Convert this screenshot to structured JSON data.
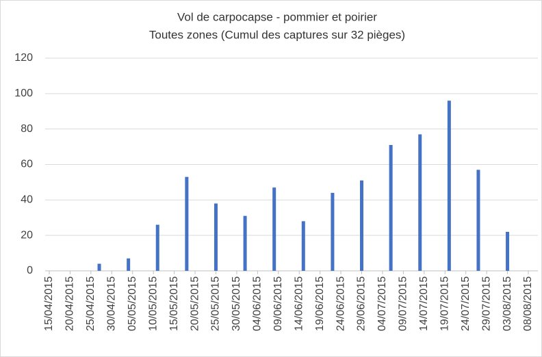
{
  "chart_data": {
    "type": "bar",
    "title": "Vol de carpocapse - pommier et poirier",
    "subtitle": "Toutes zones (Cumul des captures sur 32 pièges)",
    "x": [
      "27/04/2015",
      "04/05/2015",
      "11/05/2015",
      "18/05/2015",
      "25/05/2015",
      "01/06/2015",
      "08/06/2015",
      "15/06/2015",
      "22/06/2015",
      "29/06/2015",
      "06/07/2015",
      "13/07/2015",
      "20/07/2015",
      "27/07/2015",
      "03/08/2015"
    ],
    "values": [
      4,
      7,
      26,
      53,
      38,
      31,
      47,
      28,
      44,
      51,
      71,
      77,
      96,
      57,
      22
    ],
    "color": "#4472c4",
    "xlim": [
      "15/04/2015",
      "08/08/2015"
    ],
    "xticks": [
      "15/04/2015",
      "20/04/2015",
      "25/04/2015",
      "30/04/2015",
      "05/05/2015",
      "10/05/2015",
      "15/05/2015",
      "20/05/2015",
      "25/05/2015",
      "30/05/2015",
      "04/06/2015",
      "09/06/2015",
      "14/06/2015",
      "19/06/2015",
      "24/06/2015",
      "29/06/2015",
      "04/07/2015",
      "09/07/2015",
      "14/07/2015",
      "19/07/2015",
      "24/07/2015",
      "29/07/2015",
      "03/08/2015",
      "08/08/2015"
    ],
    "ylim": [
      0,
      120
    ],
    "yticks": [
      0,
      20,
      40,
      60,
      80,
      100,
      120
    ],
    "grid": true
  }
}
